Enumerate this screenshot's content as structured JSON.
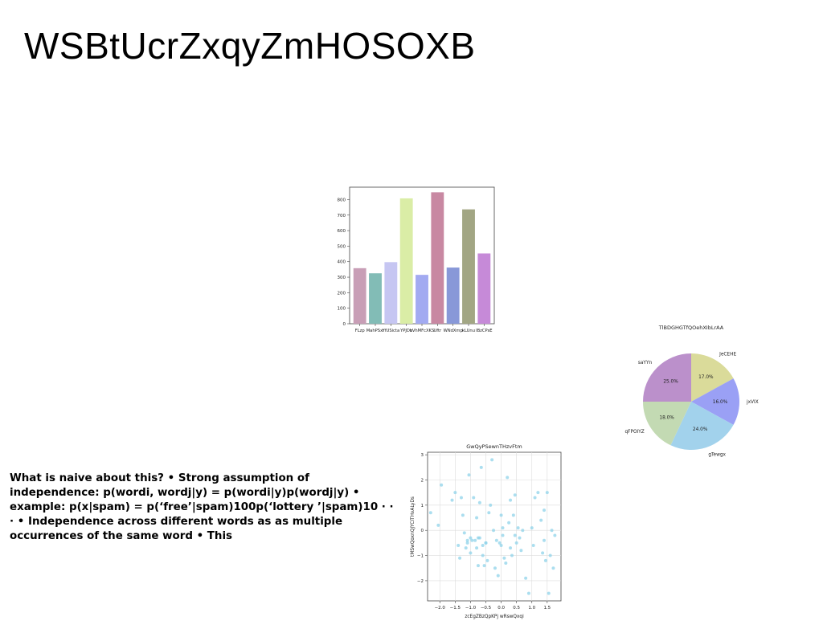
{
  "slide": {
    "title": "WSBtUcrZxqyZmHOSOXB",
    "body_text": "What is naive about this? • Strong assumption of independence: p(wordi, wordj|y) = p(wordi|y)p(wordj|y) • example: p(x|spam) = p(‘free’|spam)100p(‘lottery ’|spam)10 · · · • Independence across different words as as multiple occurrences of the same word • This"
  },
  "chart_data": [
    {
      "type": "bar",
      "title": "",
      "xlabel": "",
      "ylabel": "",
      "categories": [
        "FLzp",
        "MahPSxr",
        "YfUSicta",
        "YPJDb",
        "vVhMFcXKS",
        "Uftr",
        "WNdXmp",
        "kLUnu",
        "IBzCPsE"
      ],
      "values": [
        358,
        325,
        397,
        808,
        315,
        847,
        362,
        737,
        453
      ],
      "colors": [
        "#c89eb6",
        "#82bcb6",
        "#c6c6f2",
        "#daeda6",
        "#a2aaf1",
        "#c888a2",
        "#8898d8",
        "#a2a684",
        "#c68ad8"
      ],
      "ylim": [
        0,
        880
      ],
      "yticks": [
        0,
        100,
        200,
        300,
        400,
        500,
        600,
        700,
        800
      ]
    },
    {
      "type": "pie",
      "title": "TlBDGHGTfQOehXIbLrAA",
      "labels": [
        "JeCEHE",
        "jxVIX",
        "gTewgx",
        "qFPOIYZ",
        "saYYn"
      ],
      "values": [
        17.0,
        16.0,
        24.0,
        18.0,
        25.0
      ],
      "pct_labels": [
        "17.0%",
        "16.0%",
        "24.0%",
        "18.0%",
        "25.0%"
      ],
      "colors": [
        "#dadb9a",
        "#9aa0f5",
        "#a2d2ec",
        "#c3dab3",
        "#bb90cb"
      ]
    },
    {
      "type": "scatter",
      "title": "GwQyPSewnTHzvFtm",
      "xlabel": "zcEgZBzQpKPj wRswQxqi",
      "ylabel": "tMSwQoxnQJYCITHvALyDs",
      "xlim": [
        -2.4,
        1.95
      ],
      "ylim": [
        -2.8,
        3.1
      ],
      "xticks": [
        -2.0,
        -1.5,
        -1.0,
        -0.5,
        0.0,
        0.5,
        1.0,
        1.5
      ],
      "xtick_labels": [
        "−2.0",
        "−1.5",
        "−1.0",
        "−0.5",
        "0.0",
        "0.5",
        "1.0",
        "1.5"
      ],
      "yticks": [
        -2,
        -1,
        0,
        1,
        2,
        3
      ],
      "ytick_labels": [
        "−2",
        "−1",
        "0",
        "1",
        "2",
        "3"
      ],
      "grid": true,
      "color": "#8fd3ea",
      "x": [
        -2.3,
        -2.05,
        -1.95,
        -1.6,
        -1.5,
        -1.4,
        -1.35,
        -1.3,
        -1.25,
        -1.2,
        -1.15,
        -1.1,
        -1.05,
        -1.0,
        -1.0,
        -0.95,
        -0.9,
        -0.85,
        -0.8,
        -0.8,
        -0.75,
        -0.7,
        -0.7,
        -0.65,
        -0.6,
        -0.6,
        -0.55,
        -0.5,
        -0.5,
        -0.45,
        -0.4,
        -0.35,
        -0.3,
        -0.25,
        -0.2,
        -0.15,
        -0.1,
        -0.05,
        0.0,
        0.0,
        0.05,
        0.05,
        0.1,
        0.15,
        0.2,
        0.25,
        0.3,
        0.3,
        0.35,
        0.4,
        0.45,
        0.5,
        0.55,
        0.6,
        0.65,
        0.7,
        0.8,
        0.9,
        1.0,
        1.05,
        1.1,
        1.2,
        1.3,
        1.35,
        1.4,
        1.45,
        1.5,
        1.55,
        1.6,
        1.65,
        1.7,
        1.75,
        -0.75,
        -1.1,
        0.45,
        1.4
      ],
      "y": [
        0.7,
        0.2,
        1.8,
        1.2,
        1.5,
        -0.6,
        -1.1,
        1.3,
        0.6,
        -0.1,
        -0.7,
        -0.5,
        2.2,
        -0.3,
        -0.9,
        -0.4,
        1.3,
        -0.4,
        -0.7,
        0.5,
        -0.3,
        1.1,
        -0.3,
        2.5,
        -1.0,
        -0.6,
        -1.4,
        -0.5,
        -0.5,
        -1.2,
        0.7,
        1.0,
        2.8,
        0.0,
        -1.5,
        -0.4,
        -1.8,
        -0.5,
        -0.6,
        0.6,
        0.1,
        -0.2,
        -1.1,
        -1.3,
        2.1,
        0.3,
        -0.7,
        1.2,
        -1.0,
        0.6,
        -0.2,
        -0.5,
        0.1,
        -0.3,
        -0.8,
        0.0,
        -1.9,
        -2.5,
        0.1,
        -0.6,
        1.3,
        1.5,
        0.4,
        -0.9,
        -0.4,
        -1.2,
        1.5,
        -2.5,
        -1.0,
        0.0,
        -1.5,
        -0.2,
        -1.4,
        -0.4,
        1.4,
        0.8
      ]
    }
  ]
}
